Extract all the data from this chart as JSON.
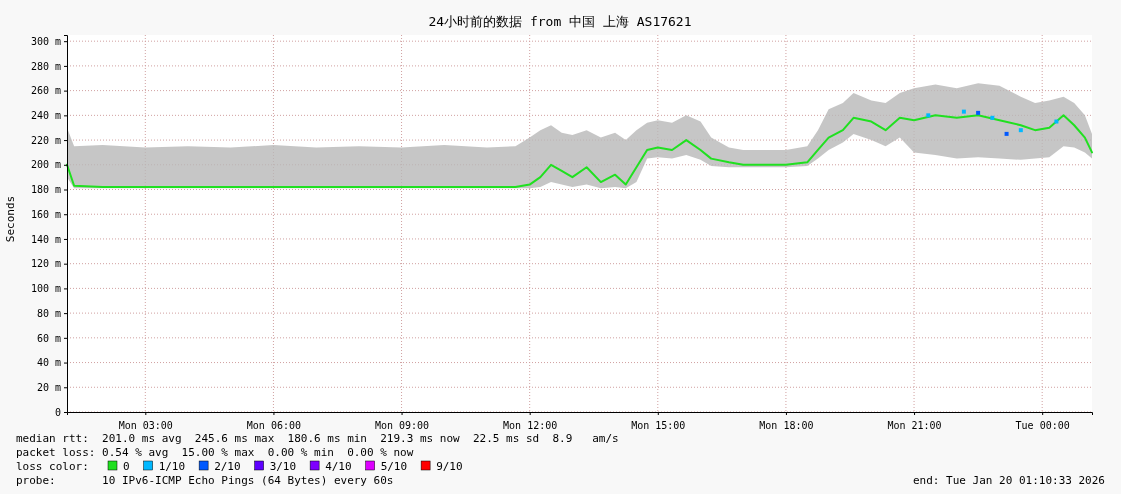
{
  "chart_data": {
    "type": "line",
    "title": "24小时前的数据 from 中国 上海 AS17621",
    "ylabel": "Seconds",
    "legend_title": "loss color:",
    "legend": "bottom",
    "grid": true,
    "line_style": "solid",
    "xlim": [
      "2026-01-19T01:10",
      "2026-01-20T01:10"
    ],
    "xticks": [
      {
        "value": "2026-01-19T03:00",
        "label": "Mon 03:00"
      },
      {
        "value": "2026-01-19T06:00",
        "label": "Mon 06:00"
      },
      {
        "value": "2026-01-19T09:00",
        "label": "Mon 09:00"
      },
      {
        "value": "2026-01-19T12:00",
        "label": "Mon 12:00"
      },
      {
        "value": "2026-01-19T15:00",
        "label": "Mon 15:00"
      },
      {
        "value": "2026-01-19T18:00",
        "label": "Mon 18:00"
      },
      {
        "value": "2026-01-19T21:00",
        "label": "Mon 21:00"
      },
      {
        "value": "2026-01-20T00:00",
        "label": "Tue 00:00"
      }
    ],
    "ylim": [
      0,
      305
    ],
    "yticks": [
      0,
      {
        "value": 20,
        "label": "20 m"
      },
      {
        "value": 40,
        "label": "40 m"
      },
      {
        "value": 60,
        "label": "60 m"
      },
      {
        "value": 80,
        "label": "80 m"
      },
      {
        "value": 100,
        "label": "100 m"
      },
      {
        "value": 120,
        "label": "120 m"
      },
      {
        "value": 140,
        "label": "140 m"
      },
      {
        "value": 160,
        "label": "160 m"
      },
      {
        "value": 180,
        "label": "180 m"
      },
      {
        "value": 200,
        "label": "200 m"
      },
      {
        "value": 220,
        "label": "220 m"
      },
      {
        "value": 240,
        "label": "240 m"
      },
      {
        "value": 260,
        "label": "260 m"
      },
      {
        "value": 280,
        "label": "280 m"
      },
      {
        "value": 300,
        "label": "300 m"
      }
    ],
    "series": [
      {
        "name": "0",
        "color": "#20e020",
        "x": [
          "2026-01-19T01:10",
          "2026-01-19T01:20",
          "2026-01-19T02:00",
          "2026-01-19T03:00",
          "2026-01-19T04:00",
          "2026-01-19T05:00",
          "2026-01-19T06:00",
          "2026-01-19T07:00",
          "2026-01-19T08:00",
          "2026-01-19T09:00",
          "2026-01-19T10:00",
          "2026-01-19T11:00",
          "2026-01-19T11:40",
          "2026-01-19T12:00",
          "2026-01-19T12:15",
          "2026-01-19T12:30",
          "2026-01-19T12:45",
          "2026-01-19T13:00",
          "2026-01-19T13:20",
          "2026-01-19T13:40",
          "2026-01-19T14:00",
          "2026-01-19T14:15",
          "2026-01-19T14:30",
          "2026-01-19T14:45",
          "2026-01-19T15:00",
          "2026-01-19T15:20",
          "2026-01-19T15:40",
          "2026-01-19T16:00",
          "2026-01-19T16:15",
          "2026-01-19T16:40",
          "2026-01-19T17:00",
          "2026-01-19T17:30",
          "2026-01-19T18:00",
          "2026-01-19T18:30",
          "2026-01-19T18:45",
          "2026-01-19T19:00",
          "2026-01-19T19:20",
          "2026-01-19T19:35",
          "2026-01-19T20:00",
          "2026-01-19T20:20",
          "2026-01-19T20:40",
          "2026-01-19T21:00",
          "2026-01-19T21:30",
          "2026-01-19T22:00",
          "2026-01-19T22:30",
          "2026-01-19T23:00",
          "2026-01-19T23:30",
          "2026-01-19T23:50",
          "2026-01-20T00:10",
          "2026-01-20T00:30",
          "2026-01-20T00:45",
          "2026-01-20T01:00",
          "2026-01-20T01:10"
        ],
        "values": [
          200,
          183,
          182,
          182,
          182,
          182,
          182,
          182,
          182,
          182,
          182,
          182,
          182,
          184,
          190,
          200,
          195,
          190,
          198,
          186,
          192,
          184,
          198,
          212,
          214,
          212,
          220,
          212,
          205,
          202,
          200,
          200,
          200,
          202,
          212,
          222,
          228,
          238,
          235,
          228,
          238,
          236,
          240,
          238,
          240,
          236,
          232,
          228,
          230,
          240,
          232,
          222,
          210
        ],
        "lower": [
          190,
          181,
          181,
          181,
          181,
          181,
          181,
          181,
          181,
          181,
          181,
          181,
          181,
          181,
          182,
          186,
          184,
          182,
          184,
          181,
          182,
          181,
          186,
          205,
          206,
          205,
          208,
          204,
          199,
          198,
          198,
          198,
          198,
          199,
          205,
          212,
          218,
          225,
          220,
          215,
          222,
          210,
          208,
          205,
          206,
          205,
          204,
          205,
          206,
          215,
          214,
          210,
          205
        ],
        "upper": [
          230,
          215,
          216,
          214,
          215,
          214,
          216,
          214,
          215,
          214,
          216,
          214,
          215,
          222,
          228,
          232,
          226,
          224,
          228,
          222,
          226,
          220,
          228,
          234,
          236,
          234,
          240,
          235,
          222,
          214,
          212,
          212,
          212,
          215,
          228,
          245,
          250,
          258,
          252,
          250,
          258,
          262,
          265,
          262,
          266,
          264,
          255,
          250,
          252,
          255,
          250,
          240,
          225
        ]
      },
      {
        "name": "1/10",
        "type": "scatter",
        "color": "#00b8ff",
        "marker": "square",
        "x": [
          "2026-01-19T21:20",
          "2026-01-19T22:10",
          "2026-01-19T22:50",
          "2026-01-19T23:30",
          "2026-01-20T00:20"
        ],
        "values": [
          240,
          243,
          238,
          228,
          235
        ]
      },
      {
        "name": "2/10",
        "type": "scatter",
        "color": "#0059ff",
        "marker": "square",
        "x": [
          "2026-01-19T22:30",
          "2026-01-19T23:10"
        ],
        "values": [
          242,
          225
        ]
      },
      {
        "name": "3/10",
        "type": "scatter",
        "color": "#5e00ff",
        "marker": "square"
      },
      {
        "name": "4/10",
        "type": "scatter",
        "color": "#7e00ff",
        "marker": "square"
      },
      {
        "name": "5/10",
        "type": "scatter",
        "color": "#dd00ff",
        "marker": "square"
      },
      {
        "name": "9/10",
        "type": "scatter",
        "color": "#ff0000",
        "marker": "square"
      }
    ],
    "annotations": [
      "median rtt:  201.0 ms avg  245.6 ms max  180.6 ms min  219.3 ms now  22.5 ms sd  8.9   am/s",
      "packet loss: 0.54 % avg  15.00 % max  0.00 % min  0.00 % now",
      "probe:       10 IPv6-ICMP Echo Pings (64 Bytes) every 60s",
      "end: Tue Jan 20 01:10:33 2026"
    ]
  }
}
